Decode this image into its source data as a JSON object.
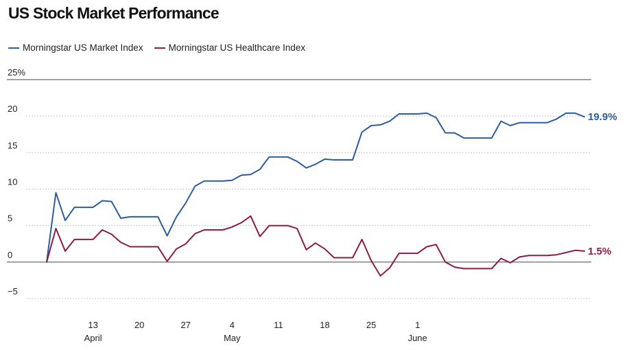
{
  "title": "US Stock Market Performance",
  "chart_data": {
    "type": "line",
    "title": "US Stock Market Performance",
    "y_unit_suffix": "%",
    "ylim": [
      -5,
      25
    ],
    "yticks": [
      25,
      20,
      15,
      10,
      5,
      0,
      -5
    ],
    "ytick_labels": [
      "25%",
      "20",
      "15",
      "10",
      "5",
      "0",
      "−5"
    ],
    "x_ticks": [
      {
        "index": 5,
        "label": "13",
        "month": "April"
      },
      {
        "index": 10,
        "label": "20",
        "month": ""
      },
      {
        "index": 15,
        "label": "27",
        "month": ""
      },
      {
        "index": 20,
        "label": "4",
        "month": "May"
      },
      {
        "index": 25,
        "label": "11",
        "month": ""
      },
      {
        "index": 30,
        "label": "18",
        "month": ""
      },
      {
        "index": 35,
        "label": "25",
        "month": ""
      },
      {
        "index": 40,
        "label": "1",
        "month": "June"
      }
    ],
    "grid": true,
    "legend_position": "top-left",
    "series": [
      {
        "name": "Morningstar US Market Index",
        "color": "#2a5c9e",
        "end_label": "19.9%",
        "values": [
          0,
          9.5,
          5.7,
          7.5,
          7.5,
          7.5,
          8.4,
          8.3,
          6.0,
          6.2,
          6.2,
          6.2,
          6.2,
          3.6,
          6.2,
          8.1,
          10.4,
          11.1,
          11.1,
          11.1,
          11.2,
          11.9,
          12.0,
          12.7,
          14.4,
          14.4,
          14.4,
          13.8,
          12.9,
          13.4,
          14.1,
          14.0,
          14.0,
          14.0,
          17.8,
          18.7,
          18.8,
          19.3,
          20.3,
          20.3,
          20.3,
          20.4,
          19.8,
          17.7,
          17.7,
          17.0,
          17.0,
          17.0,
          17.0,
          19.3,
          18.7,
          19.1,
          19.1,
          19.1,
          19.1,
          19.6,
          20.4,
          20.4,
          19.9
        ]
      },
      {
        "name": "Morningstar US Healthcare Index",
        "color": "#8e1a45",
        "end_label": "1.5%",
        "values": [
          0,
          4.6,
          1.5,
          3.1,
          3.1,
          3.1,
          4.4,
          3.8,
          2.7,
          2.1,
          2.1,
          2.1,
          2.1,
          0.1,
          1.8,
          2.5,
          3.9,
          4.4,
          4.4,
          4.4,
          4.8,
          5.4,
          6.3,
          3.5,
          5.0,
          5.0,
          5.0,
          4.6,
          1.7,
          2.6,
          1.8,
          0.6,
          0.6,
          0.6,
          3.1,
          0.2,
          -1.9,
          -0.8,
          1.2,
          1.2,
          1.2,
          2.1,
          2.4,
          0.0,
          -0.7,
          -0.9,
          -0.9,
          -0.9,
          -0.9,
          0.5,
          -0.1,
          0.7,
          0.9,
          0.9,
          0.9,
          1.0,
          1.3,
          1.6,
          1.5
        ]
      }
    ]
  }
}
